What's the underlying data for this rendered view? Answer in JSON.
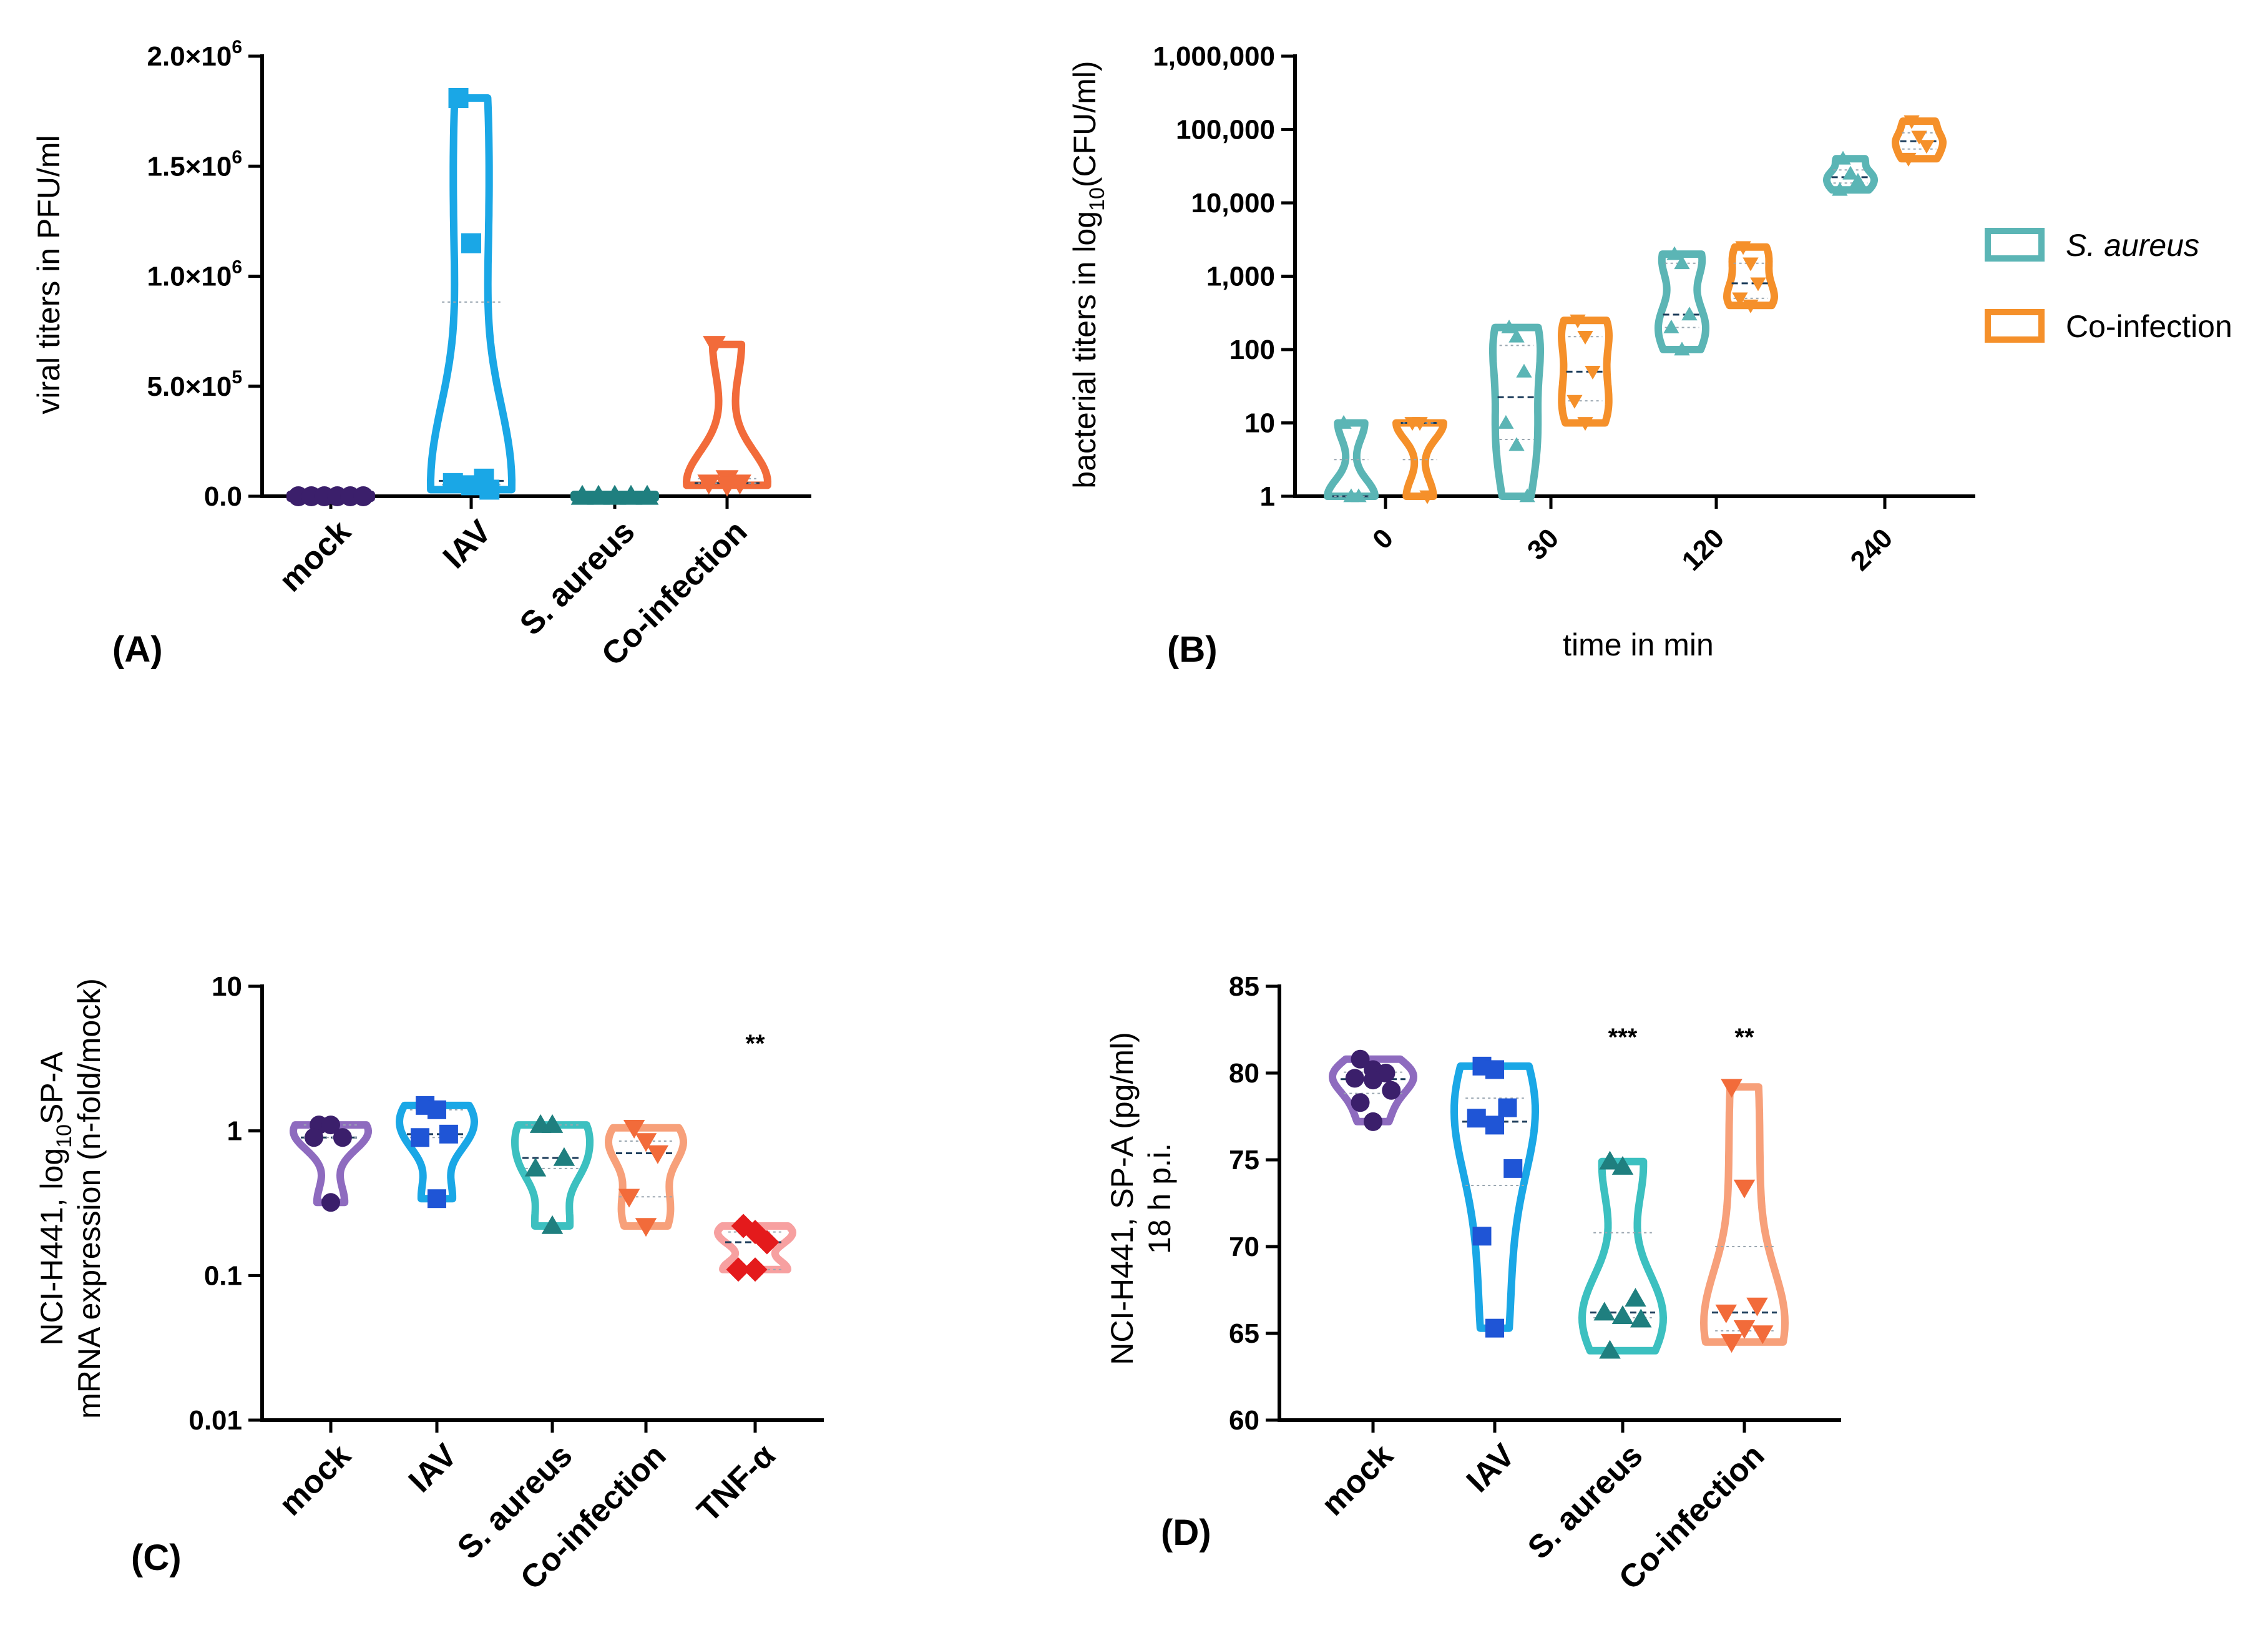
{
  "chart_data": [
    {
      "panel": "A",
      "type": "violin",
      "panel_label": "(A)",
      "ylabel": "viral titers in PFU/ml",
      "yscale": "linear",
      "ylim": [
        0,
        2000000
      ],
      "yticks": [
        {
          "value": 0,
          "label": "0.0"
        },
        {
          "value": 500000,
          "label": "5.0×10",
          "exp": "5"
        },
        {
          "value": 1000000,
          "label": "1.0×10",
          "exp": "6"
        },
        {
          "value": 1500000,
          "label": "1.5×10",
          "exp": "6"
        },
        {
          "value": 2000000,
          "label": "2.0×10",
          "exp": "6"
        }
      ],
      "categories": [
        "mock",
        "IAV",
        "S. aureus",
        "Co-infection"
      ],
      "series": [
        {
          "name": "mock",
          "color": "#3b1f6b",
          "marker": "circle",
          "values": [
            0,
            0,
            0,
            0,
            0,
            0
          ]
        },
        {
          "name": "IAV",
          "color": "#1aa7e6",
          "marker": "square",
          "values": [
            1810000,
            1150000,
            80000,
            60000,
            50000,
            30000
          ]
        },
        {
          "name": "S. aureus",
          "color": "#1f7f7f",
          "marker": "triangle-up",
          "values": [
            0,
            0,
            0,
            0,
            0
          ]
        },
        {
          "name": "Co-infection",
          "color": "#f26b3a",
          "marker": "triangle-down",
          "values": [
            690000,
            80000,
            60000,
            60000,
            50000
          ]
        }
      ]
    },
    {
      "panel": "B",
      "type": "violin",
      "panel_label": "(B)",
      "ylabel": "bacterial titers in log",
      "ylabel_sub": "10",
      "ylabel_end": "(CFU/ml)",
      "xlabel": "time in min",
      "yscale": "log",
      "ylim": [
        1,
        1000000
      ],
      "yticks": [
        {
          "value": 1,
          "label": "1"
        },
        {
          "value": 10,
          "label": "10"
        },
        {
          "value": 100,
          "label": "100"
        },
        {
          "value": 1000,
          "label": "1,000"
        },
        {
          "value": 10000,
          "label": "10,000"
        },
        {
          "value": 100000,
          "label": "100,000"
        },
        {
          "value": 1000000,
          "label": "1,000,000"
        }
      ],
      "categories": [
        "0",
        "30",
        "120",
        "240"
      ],
      "legend": {
        "position": "right",
        "entries": [
          "S. aureus",
          "Co-infection"
        ]
      },
      "series": [
        {
          "name": "S. aureus",
          "color": "#5bb5b5",
          "marker": "triangle-up",
          "groups": [
            [
              10,
              1,
              1
            ],
            [
              200,
              150,
              50,
              10,
              5,
              1
            ],
            [
              2000,
              1500,
              300,
              200,
              100
            ],
            [
              40000,
              25000,
              20000,
              15000
            ]
          ]
        },
        {
          "name": "Co-infection",
          "color": "#f5902a",
          "marker": "triangle-down",
          "groups": [
            [
              10,
              10,
              1
            ],
            [
              250,
              150,
              50,
              20,
              10
            ],
            [
              2500,
              1500,
              800,
              500,
              400
            ],
            [
              130000,
              80000,
              60000,
              40000
            ]
          ]
        }
      ]
    },
    {
      "panel": "C",
      "type": "violin",
      "panel_label": "(C)",
      "ylabel_line1": "NCI-H441, log",
      "ylabel_line1_sub": "10",
      "ylabel_line1_end": "SP-A",
      "ylabel_line2": "mRNA expression (n-fold/mock)",
      "yscale": "log",
      "ylim": [
        0.01,
        10
      ],
      "yticks": [
        {
          "value": 0.01,
          "label": "0.01"
        },
        {
          "value": 0.1,
          "label": "0.1"
        },
        {
          "value": 1,
          "label": "1"
        },
        {
          "value": 10,
          "label": "10"
        }
      ],
      "categories": [
        "mock",
        "IAV",
        "S. aureus",
        "Co-infection",
        "TNF-α"
      ],
      "significance": [
        {
          "category": "TNF-α",
          "label": "**"
        }
      ],
      "series": [
        {
          "name": "mock",
          "color": "#8e6bbf",
          "marker_color": "#3b1f6b",
          "marker": "circle",
          "values": [
            1.1,
            1.1,
            0.9,
            0.9,
            0.32
          ]
        },
        {
          "name": "IAV",
          "color": "#1aa7e6",
          "marker_color": "#1f55d6",
          "marker": "square",
          "values": [
            1.5,
            1.4,
            0.95,
            0.9,
            0.34
          ]
        },
        {
          "name": "S. aureus",
          "color": "#3cc0c0",
          "marker_color": "#1f7f7f",
          "marker": "triangle-up",
          "values": [
            1.1,
            1.1,
            0.65,
            0.55,
            0.22
          ]
        },
        {
          "name": "Co-infection",
          "color": "#f7a07a",
          "marker_color": "#f26b3a",
          "marker": "triangle-down",
          "values": [
            1.05,
            0.85,
            0.7,
            0.35,
            0.22
          ]
        },
        {
          "name": "TNF-α",
          "color": "#f7a0a0",
          "marker_color": "#e41a1c",
          "marker": "diamond",
          "values": [
            0.22,
            0.2,
            0.17,
            0.11,
            0.11
          ]
        }
      ]
    },
    {
      "panel": "D",
      "type": "violin",
      "panel_label": "(D)",
      "ylabel_line1": "NCI-H441, SP-A (pg/ml)",
      "ylabel_line2": "18 h p.i.",
      "yscale": "linear",
      "ylim": [
        60,
        85
      ],
      "yticks": [
        {
          "value": 60,
          "label": "60"
        },
        {
          "value": 65,
          "label": "65"
        },
        {
          "value": 70,
          "label": "70"
        },
        {
          "value": 75,
          "label": "75"
        },
        {
          "value": 80,
          "label": "80"
        },
        {
          "value": 85,
          "label": "85"
        }
      ],
      "categories": [
        "mock",
        "IAV",
        "S. aureus",
        "Co-infection"
      ],
      "significance": [
        {
          "category": "S. aureus",
          "label": "***"
        },
        {
          "category": "Co-infection",
          "label": "**"
        }
      ],
      "series": [
        {
          "name": "mock",
          "color": "#8e6bbf",
          "marker_color": "#3b1f6b",
          "marker": "circle",
          "values": [
            80.8,
            80.2,
            80.0,
            79.7,
            79.6,
            79.0,
            78.3,
            77.2
          ]
        },
        {
          "name": "IAV",
          "color": "#1aa7e6",
          "marker_color": "#1f55d6",
          "marker": "square",
          "values": [
            80.4,
            80.2,
            78.0,
            77.4,
            77.0,
            74.5,
            70.6,
            65.3
          ]
        },
        {
          "name": "S. aureus",
          "color": "#3cc0c0",
          "marker_color": "#1f7f7f",
          "marker": "triangle-up",
          "values": [
            74.9,
            74.6,
            67.0,
            66.2,
            66.0,
            65.8,
            64.0
          ]
        },
        {
          "name": "Co-infection",
          "color": "#f7a07a",
          "marker_color": "#f26b3a",
          "marker": "triangle-down",
          "values": [
            79.2,
            73.4,
            66.6,
            66.2,
            65.3,
            65.0,
            64.5
          ]
        }
      ]
    }
  ]
}
